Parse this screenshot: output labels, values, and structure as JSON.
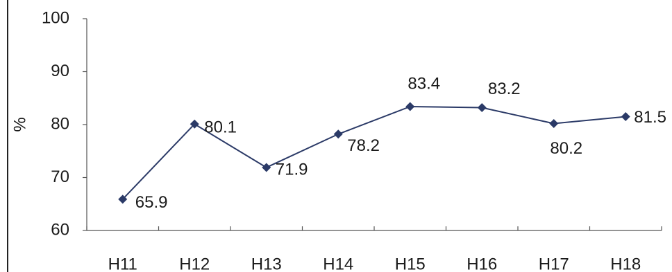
{
  "chart_data": {
    "type": "line",
    "categories": [
      "H11",
      "H12",
      "H13",
      "H14",
      "H15",
      "H16",
      "H17",
      "H18"
    ],
    "series": [
      {
        "values": [
          65.9,
          80.1,
          71.9,
          78.2,
          83.4,
          83.2,
          80.2,
          81.5
        ]
      }
    ],
    "value_labels": [
      "65.9",
      "80.1",
      "71.9",
      "78.2",
      "83.4",
      "83.2",
      "80.2",
      "81.5"
    ],
    "title": "",
    "xlabel": "",
    "ylabel": "%",
    "ylim": [
      60,
      100
    ],
    "yticks": [
      60,
      70,
      80,
      90,
      100
    ],
    "ytick_labels": [
      "60",
      "70",
      "80",
      "90",
      "100"
    ],
    "grid": false,
    "marker": "diamond",
    "line_color": "#2b3a67",
    "marker_color": "#2b3a67"
  }
}
